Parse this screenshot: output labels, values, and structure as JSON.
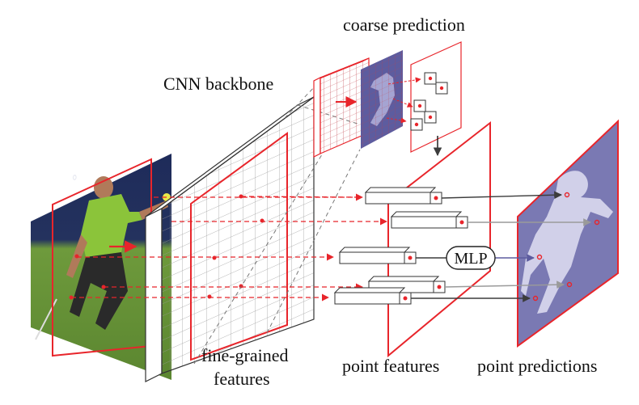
{
  "labels": {
    "coarse_prediction": "coarse prediction",
    "cnn_backbone": "CNN backbone",
    "fine_grained_line1": "fine-grained",
    "fine_grained_line2": "features",
    "point_features": "point features",
    "point_predictions": "point predictions",
    "mlp": "MLP"
  },
  "colors": {
    "accent_red": "#e8252b",
    "mask_purple": "#7a79b3",
    "coarse_purple": "#5d5c9f",
    "grid_gray": "#9a9a9a",
    "arrow_dark": "#3c3c3c",
    "court_green": "#6e9a3c",
    "banner_navy": "#1e2b5a"
  },
  "icons": {
    "mlp_node": "mlp-ellipse",
    "sample_point": "red-circle-dot"
  }
}
